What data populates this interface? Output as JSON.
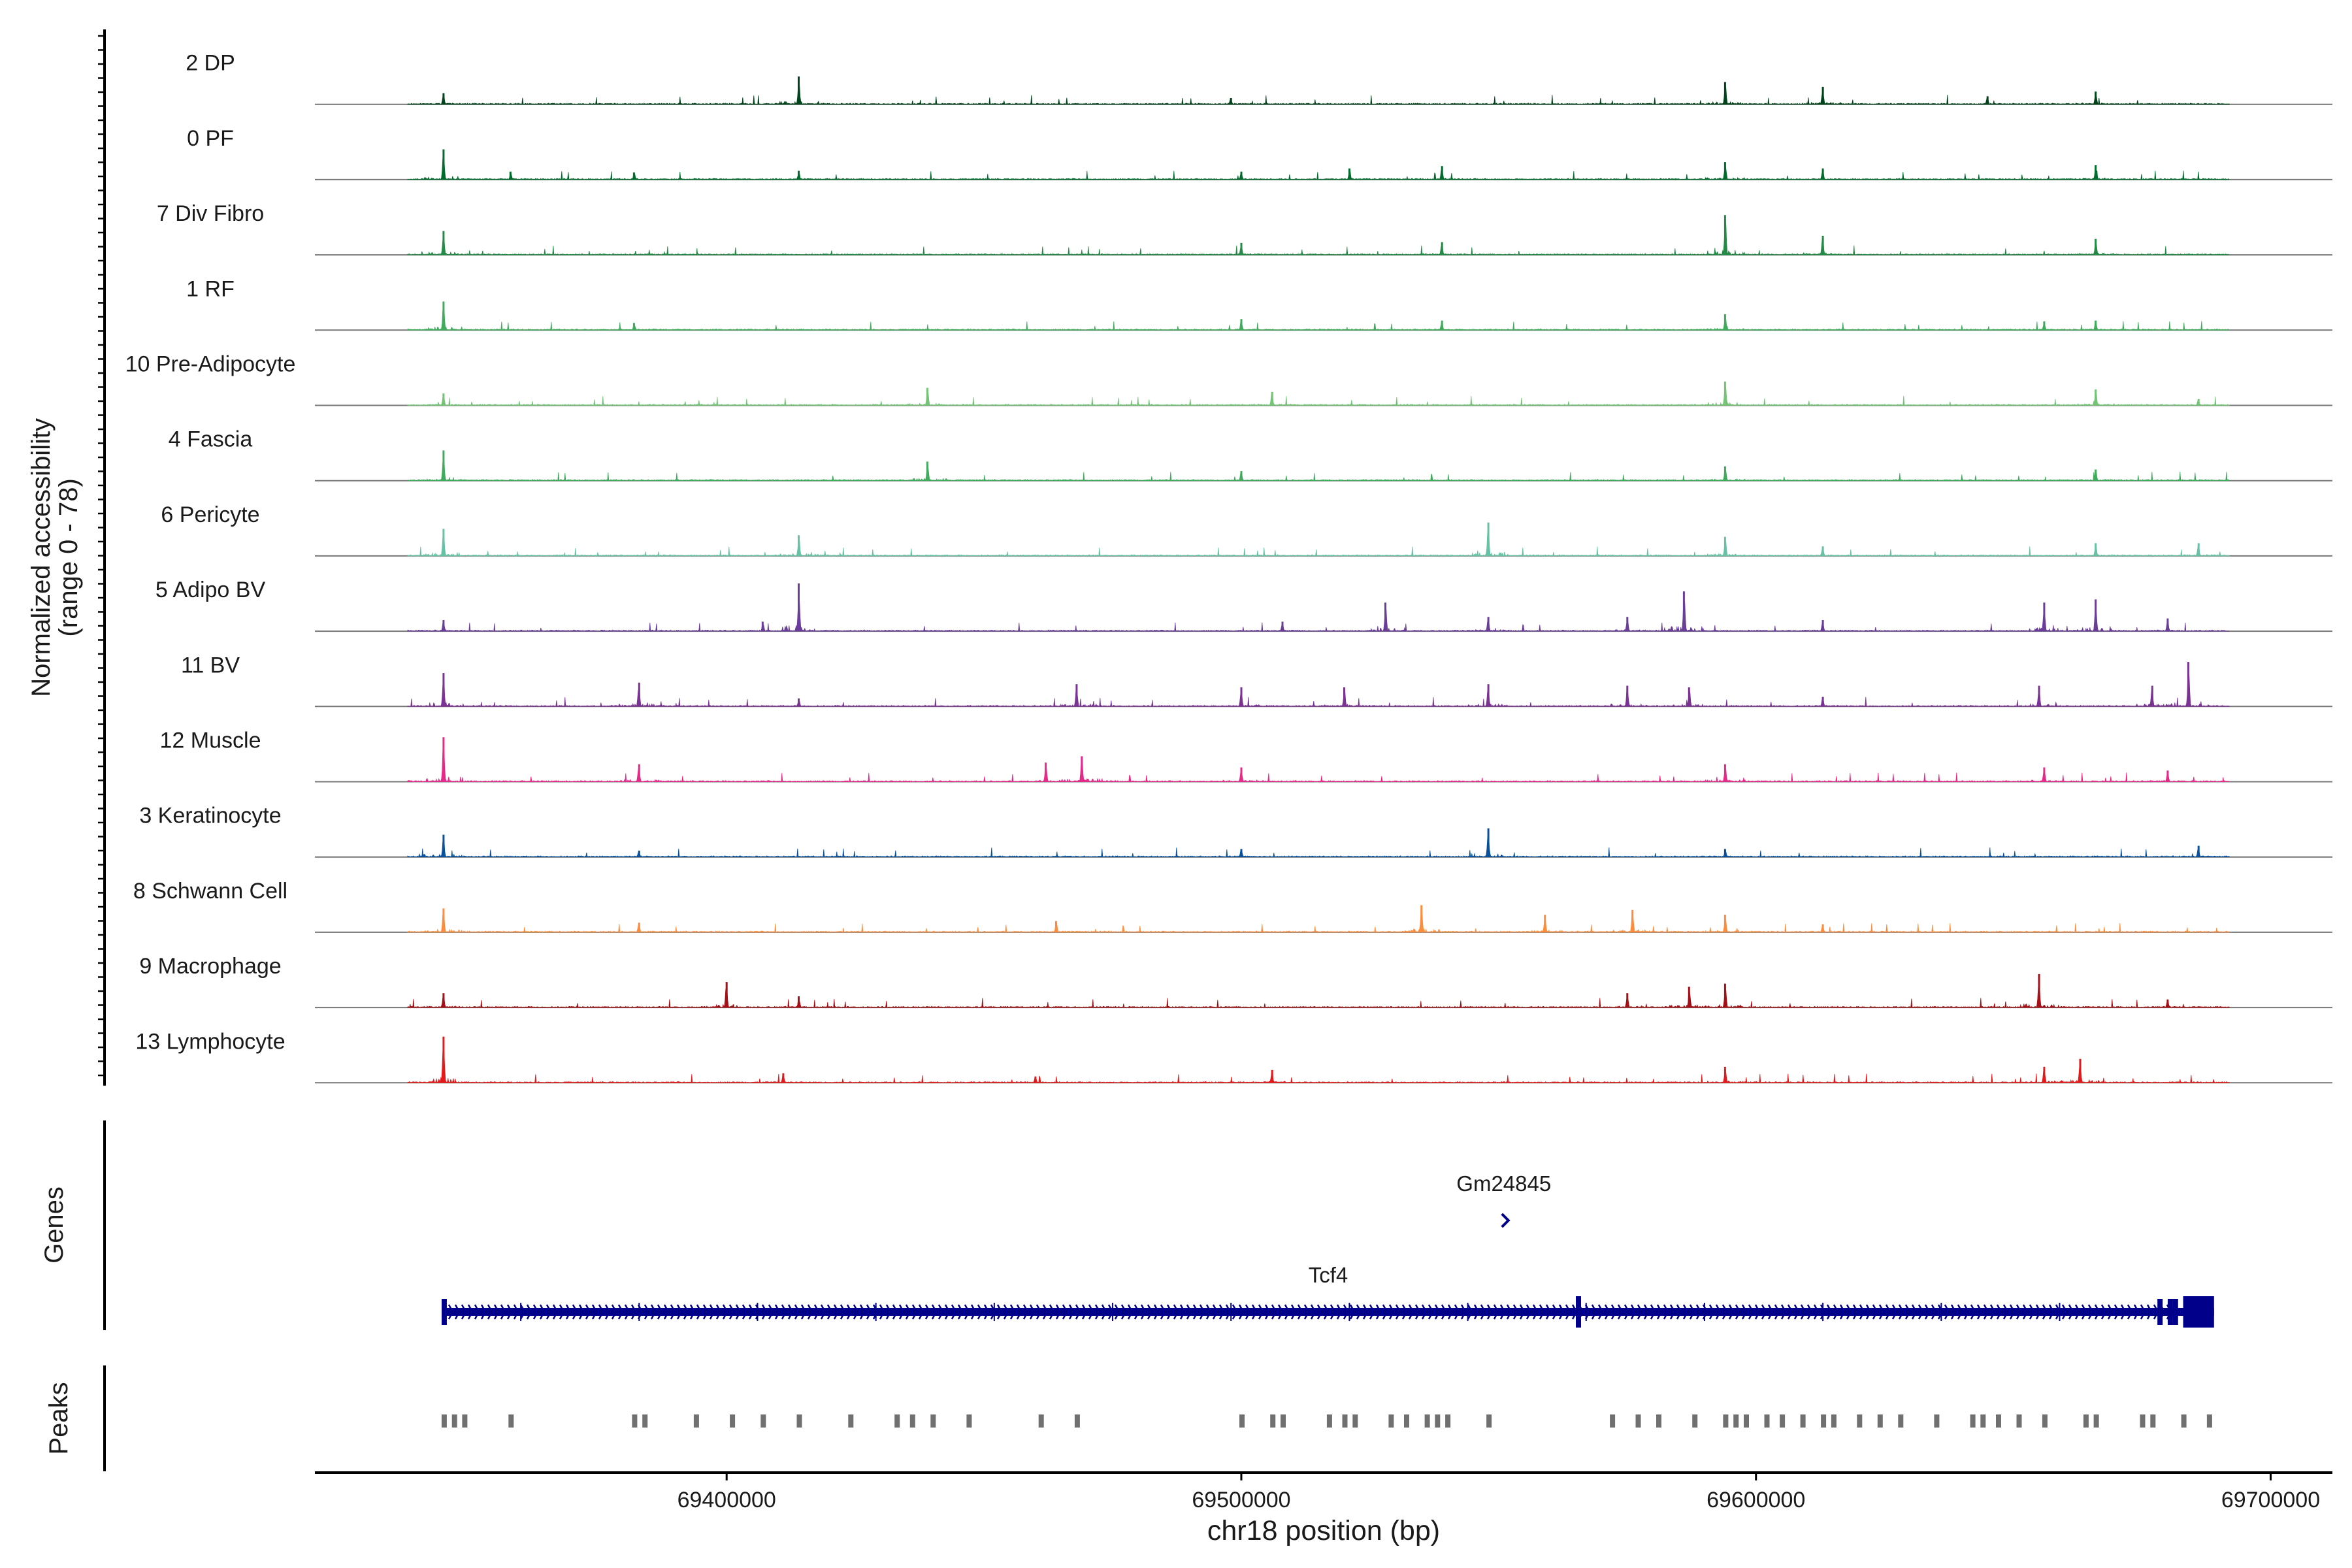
{
  "chart_data": {
    "type": "area",
    "title": "",
    "xlabel": "chr18 position (bp)",
    "ylabel": "Normalized accessibility",
    "ylabel_range": "(range 0 - 78)",
    "ylim": [
      0,
      78
    ],
    "xlim": [
      69320000,
      69712000
    ],
    "x_ticks": [
      69400000,
      69500000,
      69600000,
      69700000
    ],
    "x_tick_labels": [
      "69400000",
      "69500000",
      "69600000",
      "69700000"
    ],
    "data_range": [
      69338000,
      69692000
    ],
    "track_panels": [
      {
        "name": "genes",
        "label": "Genes"
      },
      {
        "name": "peaks",
        "label": "Peaks"
      }
    ],
    "series": [
      {
        "name": "2 DP",
        "color": "#00441b",
        "peaks": [
          [
            69345000,
            14
          ],
          [
            69414000,
            35
          ],
          [
            69498000,
            8
          ],
          [
            69594000,
            28
          ],
          [
            69613000,
            22
          ],
          [
            69645000,
            10
          ],
          [
            69666000,
            16
          ]
        ]
      },
      {
        "name": "0 PF",
        "color": "#006d2c",
        "peaks": [
          [
            69345000,
            38
          ],
          [
            69358000,
            10
          ],
          [
            69382000,
            9
          ],
          [
            69414000,
            11
          ],
          [
            69500000,
            10
          ],
          [
            69521000,
            14
          ],
          [
            69539000,
            17
          ],
          [
            69594000,
            22
          ],
          [
            69613000,
            14
          ],
          [
            69666000,
            18
          ]
        ]
      },
      {
        "name": "7 Div Fibro",
        "color": "#238b45",
        "peaks": [
          [
            69345000,
            30
          ],
          [
            69500000,
            15
          ],
          [
            69539000,
            16
          ],
          [
            69594000,
            50
          ],
          [
            69613000,
            24
          ],
          [
            69666000,
            20
          ]
        ]
      },
      {
        "name": "1 RF",
        "color": "#41ab5d",
        "peaks": [
          [
            69345000,
            36
          ],
          [
            69382000,
            9
          ],
          [
            69500000,
            14
          ],
          [
            69539000,
            12
          ],
          [
            69594000,
            20
          ],
          [
            69656000,
            11
          ],
          [
            69666000,
            12
          ]
        ]
      },
      {
        "name": "10 Pre-Adipocyte",
        "color": "#74c476",
        "peaks": [
          [
            69345000,
            15
          ],
          [
            69439000,
            22
          ],
          [
            69506000,
            17
          ],
          [
            69594000,
            30
          ],
          [
            69666000,
            20
          ],
          [
            69686000,
            8
          ]
        ]
      },
      {
        "name": "4 Fascia",
        "color": "#41ab5d",
        "peaks": [
          [
            69345000,
            38
          ],
          [
            69439000,
            24
          ],
          [
            69500000,
            12
          ],
          [
            69594000,
            18
          ],
          [
            69666000,
            14
          ]
        ]
      },
      {
        "name": "6 Pericyte",
        "color": "#66c2a4",
        "peaks": [
          [
            69345000,
            34
          ],
          [
            69414000,
            26
          ],
          [
            69548000,
            42
          ],
          [
            69594000,
            24
          ],
          [
            69613000,
            12
          ],
          [
            69666000,
            16
          ],
          [
            69686000,
            16
          ]
        ]
      },
      {
        "name": "5 Adipo BV",
        "color": "#6a3d9a",
        "peaks": [
          [
            69345000,
            14
          ],
          [
            69407000,
            12
          ],
          [
            69414000,
            60
          ],
          [
            69508000,
            12
          ],
          [
            69528000,
            36
          ],
          [
            69548000,
            18
          ],
          [
            69575000,
            18
          ],
          [
            69586000,
            50
          ],
          [
            69613000,
            14
          ],
          [
            69656000,
            36
          ],
          [
            69666000,
            40
          ],
          [
            69680000,
            16
          ]
        ]
      },
      {
        "name": "11 BV",
        "color": "#7b3294",
        "peaks": [
          [
            69345000,
            42
          ],
          [
            69383000,
            30
          ],
          [
            69414000,
            10
          ],
          [
            69468000,
            28
          ],
          [
            69500000,
            24
          ],
          [
            69520000,
            24
          ],
          [
            69548000,
            28
          ],
          [
            69575000,
            26
          ],
          [
            69587000,
            24
          ],
          [
            69613000,
            12
          ],
          [
            69655000,
            26
          ],
          [
            69677000,
            26
          ],
          [
            69684000,
            56
          ]
        ]
      },
      {
        "name": "12 Muscle",
        "color": "#e7298a",
        "peaks": [
          [
            69345000,
            56
          ],
          [
            69383000,
            22
          ],
          [
            69462000,
            24
          ],
          [
            69469000,
            32
          ],
          [
            69500000,
            18
          ],
          [
            69594000,
            22
          ],
          [
            69656000,
            18
          ],
          [
            69680000,
            14
          ]
        ]
      },
      {
        "name": "3 Keratinocyte",
        "color": "#08519c",
        "peaks": [
          [
            69345000,
            28
          ],
          [
            69383000,
            8
          ],
          [
            69500000,
            10
          ],
          [
            69548000,
            36
          ],
          [
            69594000,
            10
          ],
          [
            69686000,
            14
          ]
        ]
      },
      {
        "name": "8 Schwann Cell",
        "color": "#fd8d3c",
        "peaks": [
          [
            69345000,
            30
          ],
          [
            69383000,
            12
          ],
          [
            69464000,
            14
          ],
          [
            69535000,
            34
          ],
          [
            69559000,
            22
          ],
          [
            69576000,
            28
          ],
          [
            69594000,
            22
          ],
          [
            69613000,
            10
          ]
        ]
      },
      {
        "name": "9 Macrophage",
        "color": "#a50f15",
        "peaks": [
          [
            69345000,
            18
          ],
          [
            69400000,
            32
          ],
          [
            69414000,
            14
          ],
          [
            69575000,
            18
          ],
          [
            69587000,
            26
          ],
          [
            69594000,
            30
          ],
          [
            69655000,
            42
          ],
          [
            69680000,
            10
          ]
        ]
      },
      {
        "name": "13 Lymphocyte",
        "color": "#e31a1c",
        "peaks": [
          [
            69345000,
            58
          ],
          [
            69411000,
            12
          ],
          [
            69460000,
            8
          ],
          [
            69506000,
            16
          ],
          [
            69594000,
            20
          ],
          [
            69656000,
            20
          ],
          [
            69663000,
            30
          ]
        ]
      }
    ],
    "genes": [
      {
        "name": "Gm24845",
        "start": 69549000,
        "end": 69552000,
        "strand": "+"
      },
      {
        "name": "Tcf4",
        "start": 69345000,
        "end": 69689000,
        "strand": "+"
      }
    ],
    "peaks": [
      69345000,
      69347000,
      69349000,
      69358000,
      69382000,
      69384000,
      69394000,
      69401000,
      69407000,
      69414000,
      69424000,
      69433000,
      69436000,
      69440000,
      69447000,
      69461000,
      69468000,
      69500000,
      69506000,
      69508000,
      69517000,
      69520000,
      69522000,
      69529000,
      69532000,
      69536000,
      69538000,
      69540000,
      69548000,
      69572000,
      69577000,
      69581000,
      69588000,
      69594000,
      69596000,
      69598000,
      69602000,
      69605000,
      69609000,
      69613000,
      69615000,
      69620000,
      69624000,
      69628000,
      69635000,
      69642000,
      69644000,
      69647000,
      69651000,
      69656000,
      69664000,
      69666000,
      69675000,
      69677000,
      69683000,
      69688000
    ]
  }
}
